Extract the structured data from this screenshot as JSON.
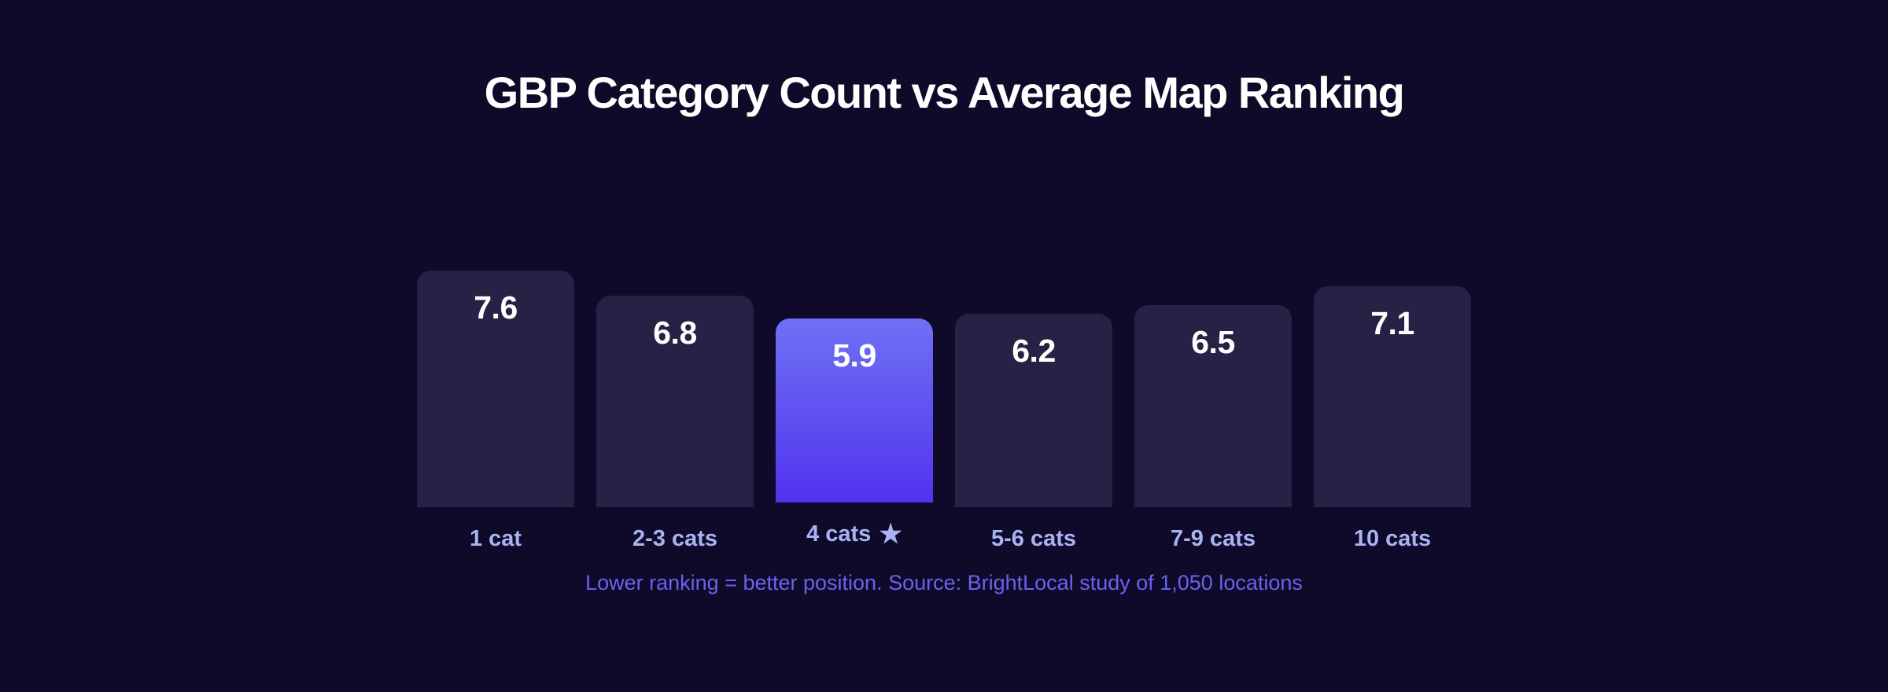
{
  "title": "GBP Category Count vs Average Map Ranking",
  "footnote": "Lower ranking = better position. Source: BrightLocal study of 1,050 locations",
  "chart_data": {
    "type": "bar",
    "title": "GBP Category Count vs Average Map Ranking",
    "orientation": "vertical",
    "categories": [
      "1 cat",
      "2-3 cats",
      "4 cats",
      "5-6 cats",
      "7-9 cats",
      "10 cats"
    ],
    "values": [
      7.6,
      6.8,
      5.9,
      6.2,
      6.5,
      7.1
    ],
    "value_labels": [
      "7.6",
      "6.8",
      "5.9",
      "6.2",
      "6.5",
      "7.1"
    ],
    "highlight": {
      "index": 2,
      "marker": "★"
    },
    "xlabel": "",
    "ylabel": "",
    "value_axis_visible": false,
    "grid": false,
    "legend": false,
    "annotation": "Lower ranking = better position. Source: BrightLocal study of 1,050 locations",
    "colors": {
      "background": "#0f0a29",
      "bar": "#272245",
      "bar_highlight_top": "#6f71f4",
      "bar_highlight_bottom": "#5133ee",
      "value_text": "#ffffff",
      "category_label": "#a9b3f3",
      "annotation_text": "#6a62ef",
      "title_text": "#ffffff"
    }
  }
}
